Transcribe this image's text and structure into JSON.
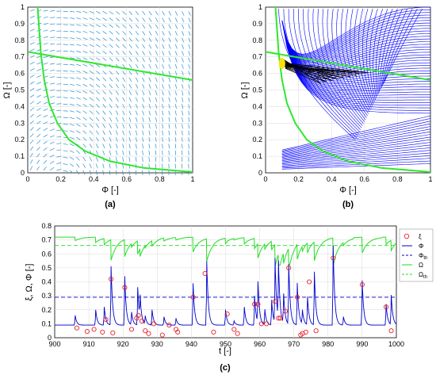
{
  "chart_data": [
    {
      "panel": "(a)",
      "type": "vector-field",
      "xlabel": "Φ [-]",
      "ylabel": "Ω [-]",
      "xlim": [
        0,
        1
      ],
      "ylim": [
        0,
        1
      ],
      "xticks": [
        "0",
        "0.2",
        "0.4",
        "0.6",
        "0.8",
        "1"
      ],
      "yticks": [
        "0",
        "0.1",
        "0.2",
        "0.3",
        "0.4",
        "0.5",
        "0.6",
        "0.7",
        "0.8",
        "0.9",
        "1"
      ],
      "grid": true,
      "series": [
        {
          "kind": "nullcline-line",
          "x": [
            0,
            1
          ],
          "y": [
            0.73,
            0.56
          ],
          "color": "#2ee82e"
        },
        {
          "kind": "nullcline-curve",
          "x": [
            0.06,
            0.08,
            0.1,
            0.13,
            0.18,
            0.25,
            0.35,
            0.5,
            0.7,
            1.0
          ],
          "y": [
            1.0,
            0.72,
            0.56,
            0.42,
            0.3,
            0.2,
            0.13,
            0.07,
            0.03,
            0.005
          ],
          "color": "#2ee82e"
        }
      ],
      "arrow_color": "#2a8fd0"
    },
    {
      "panel": "(b)",
      "type": "phase-trajectories",
      "xlabel": "Φ [-]",
      "ylabel": "Ω [-]",
      "xlim": [
        0,
        1
      ],
      "ylim": [
        0,
        1
      ],
      "xticks": [
        "0",
        "0.2",
        "0.4",
        "0.6",
        "0.8",
        "1"
      ],
      "yticks": [
        "0",
        "0.1",
        "0.2",
        "0.3",
        "0.4",
        "0.5",
        "0.6",
        "0.7",
        "0.8",
        "0.9",
        "1"
      ],
      "grid": true,
      "series": [
        {
          "kind": "nullcline-line",
          "x": [
            0,
            1
          ],
          "y": [
            0.73,
            0.56
          ],
          "color": "#2ee82e"
        },
        {
          "kind": "nullcline-curve",
          "x": [
            0.06,
            0.08,
            0.1,
            0.13,
            0.18,
            0.25,
            0.35,
            0.5,
            0.7,
            1.0
          ],
          "y": [
            1.0,
            0.72,
            0.56,
            0.42,
            0.3,
            0.2,
            0.13,
            0.07,
            0.03,
            0.005
          ],
          "color": "#2ee82e"
        },
        {
          "kind": "trajectories",
          "color": "#0000ff"
        },
        {
          "kind": "limit-cycles",
          "color": "#000000",
          "x_range": [
            0.1,
            0.62
          ],
          "y_range": [
            0.54,
            0.7
          ]
        },
        {
          "kind": "attractor",
          "x": 0.1,
          "y": 0.66,
          "color": "#ffe000"
        }
      ]
    },
    {
      "panel": "(c)",
      "type": "line",
      "xlabel": "t [-]",
      "ylabel": "ξ, Ω, Φ [-]",
      "xlim": [
        900,
        1000
      ],
      "ylim": [
        0,
        0.8
      ],
      "xticks": [
        "900",
        "910",
        "920",
        "930",
        "940",
        "950",
        "960",
        "970",
        "980",
        "990",
        "1000"
      ],
      "yticks": [
        "0",
        "0.1",
        "0.2",
        "0.3",
        "0.4",
        "0.5",
        "0.6",
        "0.7",
        "0.8"
      ],
      "grid": true,
      "legend": "right",
      "legend_labels": [
        "ξ",
        "Φ",
        "Φ",
        "Ω",
        "Ω"
      ],
      "legend_subscripts": [
        "",
        "",
        "th",
        "",
        "th"
      ],
      "thresholds": {
        "phi_th": 0.29,
        "omega_th": 0.66
      },
      "omega_base": 0.72,
      "phi_base": 0.09,
      "spikes": [
        {
          "t": 906,
          "phi": 0.16
        },
        {
          "t": 912,
          "phi": 0.2
        },
        {
          "t": 914.5,
          "phi": 0.22
        },
        {
          "t": 916.5,
          "phi": 0.51
        },
        {
          "t": 920.5,
          "phi": 0.44
        },
        {
          "t": 922.5,
          "phi": 0.18
        },
        {
          "t": 924.3,
          "phi": 0.36
        },
        {
          "t": 925,
          "phi": 0.25
        },
        {
          "t": 926.5,
          "phi": 0.15
        },
        {
          "t": 928.5,
          "phi": 0.2
        },
        {
          "t": 932,
          "phi": 0.15
        },
        {
          "t": 935.5,
          "phi": 0.14
        },
        {
          "t": 940.5,
          "phi": 0.39
        },
        {
          "t": 944.5,
          "phi": 0.55
        },
        {
          "t": 950,
          "phi": 0.2
        },
        {
          "t": 952.5,
          "phi": 0.12
        },
        {
          "t": 955.5,
          "phi": 0.22
        },
        {
          "t": 958.5,
          "phi": 0.3
        },
        {
          "t": 959.5,
          "phi": 0.38
        },
        {
          "t": 961.5,
          "phi": 0.2
        },
        {
          "t": 963.5,
          "phi": 0.27
        },
        {
          "t": 964.5,
          "phi": 0.55
        },
        {
          "t": 965.5,
          "phi": 0.5
        },
        {
          "t": 967,
          "phi": 0.3
        },
        {
          "t": 968.5,
          "phi": 0.52
        },
        {
          "t": 971,
          "phi": 0.39
        },
        {
          "t": 972.5,
          "phi": 0.19
        },
        {
          "t": 974,
          "phi": 0.29
        },
        {
          "t": 976,
          "phi": 0.47
        },
        {
          "t": 981.5,
          "phi": 0.66
        },
        {
          "t": 984.5,
          "phi": 0.15
        },
        {
          "t": 990,
          "phi": 0.41
        },
        {
          "t": 997,
          "phi": 0.24
        },
        {
          "t": 998.5,
          "phi": 0.3
        }
      ],
      "xi_points": [
        {
          "t": 906.5,
          "v": 0.07
        },
        {
          "t": 909.5,
          "v": 0.045
        },
        {
          "t": 911.5,
          "v": 0.06
        },
        {
          "t": 914,
          "v": 0.04
        },
        {
          "t": 915,
          "v": 0.13
        },
        {
          "t": 916.5,
          "v": 0.42
        },
        {
          "t": 917,
          "v": 0.035
        },
        {
          "t": 920.5,
          "v": 0.36
        },
        {
          "t": 922.5,
          "v": 0.06
        },
        {
          "t": 924,
          "v": 0.14
        },
        {
          "t": 924.5,
          "v": 0.16
        },
        {
          "t": 925.5,
          "v": 0.12
        },
        {
          "t": 926.5,
          "v": 0.05
        },
        {
          "t": 927.5,
          "v": 0.03
        },
        {
          "t": 929,
          "v": 0.1
        },
        {
          "t": 931.5,
          "v": 0.02
        },
        {
          "t": 933.5,
          "v": 0.09
        },
        {
          "t": 935.5,
          "v": 0.06
        },
        {
          "t": 936,
          "v": 0.04
        },
        {
          "t": 940.5,
          "v": 0.29
        },
        {
          "t": 944,
          "v": 0.46
        },
        {
          "t": 946.5,
          "v": 0.04
        },
        {
          "t": 950.5,
          "v": 0.17
        },
        {
          "t": 952.5,
          "v": 0.06
        },
        {
          "t": 953.5,
          "v": 0.03
        },
        {
          "t": 958.5,
          "v": 0.24
        },
        {
          "t": 959.5,
          "v": 0.24
        },
        {
          "t": 960.5,
          "v": 0.1
        },
        {
          "t": 962,
          "v": 0.1
        },
        {
          "t": 964.5,
          "v": 0.26
        },
        {
          "t": 965.5,
          "v": 0.14
        },
        {
          "t": 966,
          "v": 0.14
        },
        {
          "t": 967.5,
          "v": 0.19
        },
        {
          "t": 968.5,
          "v": 0.5
        },
        {
          "t": 971,
          "v": 0.29
        },
        {
          "t": 972,
          "v": 0.02
        },
        {
          "t": 972.5,
          "v": 0.03
        },
        {
          "t": 973.5,
          "v": 0.04
        },
        {
          "t": 974.5,
          "v": 0.4
        },
        {
          "t": 976.5,
          "v": 0.05
        },
        {
          "t": 981.5,
          "v": 0.57
        },
        {
          "t": 990,
          "v": 0.38
        },
        {
          "t": 997,
          "v": 0.22
        },
        {
          "t": 998.5,
          "v": 0.05
        }
      ],
      "colors": {
        "xi": "#e8202a",
        "phi": "#0000d0",
        "omega": "#22dd22"
      }
    }
  ],
  "labels": {
    "a": "(a)",
    "b": "(b)",
    "c": "(c)"
  }
}
